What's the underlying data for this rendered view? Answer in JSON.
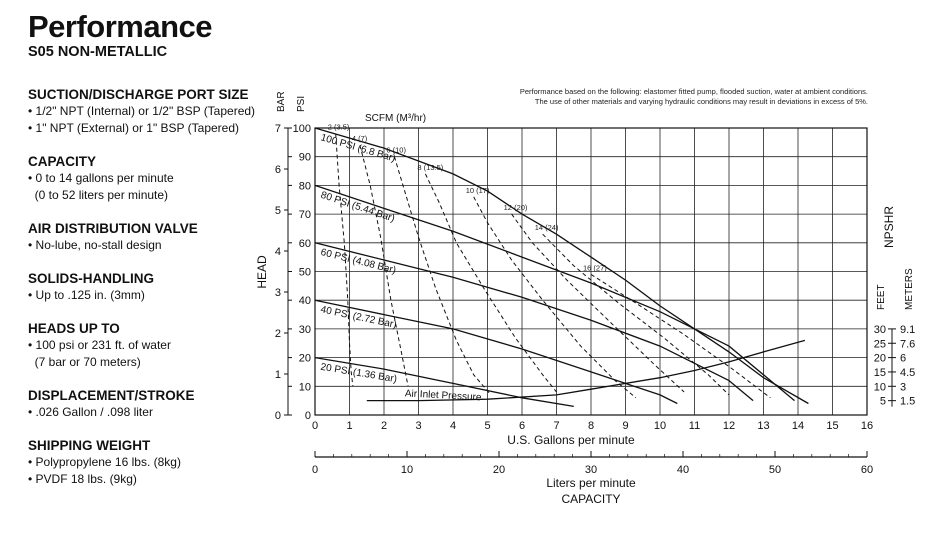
{
  "header": {
    "title": "Performance",
    "subtitle": "S05 NON-METALLIC"
  },
  "specs": [
    {
      "heading": "SUCTION/DISCHARGE PORT SIZE",
      "lines": [
        "• 1/2\" NPT (Internal) or 1/2\" BSP (Tapered)",
        "• 1\" NPT (External) or 1\" BSP (Tapered)"
      ]
    },
    {
      "heading": "CAPACITY",
      "lines": [
        "• 0 to 14 gallons per minute",
        "  (0 to 52 liters per minute)"
      ]
    },
    {
      "heading": "AIR DISTRIBUTION VALVE",
      "lines": [
        "• No-lube, no-stall design"
      ]
    },
    {
      "heading": "SOLIDS-HANDLING",
      "lines": [
        "• Up to .125 in. (3mm)"
      ]
    },
    {
      "heading": "HEADS UP TO",
      "lines": [
        "• 100 psi or 231 ft. of water",
        "  (7 bar or 70 meters)"
      ]
    },
    {
      "heading": "DISPLACEMENT/STROKE",
      "lines": [
        "• .026 Gallon / .098 liter"
      ]
    },
    {
      "heading": "SHIPPING WEIGHT",
      "lines": [
        "• Polypropylene 16 lbs. (8kg)",
        "• PVDF 18 lbs. (9kg)"
      ]
    }
  ],
  "chart_data": {
    "type": "line",
    "note_lines": [
      "Performance based on the following: elastomer fitted pump, flooded suction, water at ambient conditions.",
      "The use of other materials and varying hydraulic conditions may result in deviations in excess of 5%."
    ],
    "xlabel": "U.S. Gallons per minute",
    "ylabel": "HEAD",
    "xlim": [
      0,
      16
    ],
    "ylim": [
      0,
      100
    ],
    "x_ticks": [
      "0",
      "1",
      "2",
      "3",
      "4",
      "5",
      "6",
      "7",
      "8",
      "9",
      "10",
      "11",
      "12",
      "13",
      "14",
      "15",
      "16"
    ],
    "psi_ticks": [
      "0",
      "10",
      "20",
      "30",
      "40",
      "50",
      "60",
      "70",
      "80",
      "90",
      "100"
    ],
    "bar_ticks": [
      "0",
      "1",
      "2",
      "3",
      "4",
      "5",
      "6",
      "7"
    ],
    "psi_label": "PSI",
    "bar_label": "BAR",
    "scfm_label": "SCFM (M³/hr)",
    "secondary_x": {
      "label": "Liters per minute",
      "sublabel": "CAPACITY",
      "lim": [
        0,
        60
      ],
      "ticks": [
        "0",
        "10",
        "20",
        "30",
        "40",
        "50",
        "60"
      ]
    },
    "npshr": {
      "label": "NPSHR",
      "feet_label": "FEET",
      "meters_label": "METERS",
      "feet_ticks": [
        "5",
        "10",
        "15",
        "20",
        "25",
        "30"
      ],
      "meters_ticks": [
        "1.5",
        "3",
        "4.5",
        "6",
        "7.6",
        "9.1"
      ]
    },
    "series": [
      {
        "name": "100 PSI (6.8 Bar)",
        "x": [
          0,
          2,
          4,
          5,
          6,
          7,
          8,
          9,
          10,
          11,
          12,
          13,
          14.3
        ],
        "y": [
          100,
          93,
          84,
          78,
          70,
          63,
          55,
          47,
          38,
          30,
          22,
          13,
          4
        ]
      },
      {
        "name": "80 PSI (5.44 Bar)",
        "x": [
          0,
          2,
          4,
          6,
          8,
          10,
          12,
          13,
          13.9
        ],
        "y": [
          80,
          72,
          64,
          55,
          46,
          36,
          24,
          14,
          5
        ]
      },
      {
        "name": "60 PSI (4.08 Bar)",
        "x": [
          0,
          2,
          4,
          6,
          8,
          10,
          12,
          12.7
        ],
        "y": [
          60,
          54,
          48,
          41,
          33,
          24,
          12,
          5
        ]
      },
      {
        "name": "40 PSI (2.72 Bar)",
        "x": [
          0,
          2,
          4,
          6,
          8,
          10,
          10.5
        ],
        "y": [
          40,
          35,
          30,
          23,
          15,
          7,
          4
        ]
      },
      {
        "name": "20 PSI (1.36 Bar)",
        "x": [
          0,
          2,
          4,
          6,
          7.5
        ],
        "y": [
          20,
          16,
          11,
          6,
          3
        ]
      }
    ],
    "air_inlet_curve": {
      "name": "Air Inlet Pressure",
      "x": [
        1.5,
        3,
        5,
        7,
        8,
        9,
        10,
        11,
        12,
        13,
        14.2
      ],
      "y": [
        5,
        5,
        5.5,
        7,
        9,
        11,
        13,
        15.5,
        18.5,
        22,
        26
      ]
    },
    "scfm_curves": [
      {
        "label": "2 (3.5)",
        "x": [
          0.6,
          0.7,
          0.85,
          0.95,
          1.0,
          1.05,
          1.1
        ],
        "y": [
          98,
          80,
          60,
          40,
          25,
          15,
          10
        ]
      },
      {
        "label": "4 (7)",
        "x": [
          1.3,
          1.6,
          1.9,
          2.2,
          2.5,
          2.7
        ],
        "y": [
          94,
          80,
          62,
          40,
          22,
          10
        ]
      },
      {
        "label": "6 (10)",
        "x": [
          2.3,
          2.6,
          3.0,
          3.5,
          4.1,
          4.6,
          5.1
        ],
        "y": [
          90,
          78,
          62,
          44,
          26,
          14,
          7
        ]
      },
      {
        "label": "8 (13.5)",
        "x": [
          3.2,
          3.6,
          4.1,
          4.9,
          5.8,
          6.6,
          7.0
        ],
        "y": [
          84,
          74,
          60,
          44,
          27,
          14,
          8
        ]
      },
      {
        "label": "10 (17)",
        "x": [
          4.6,
          5.0,
          5.7,
          6.6,
          7.7,
          8.7,
          9.3
        ],
        "y": [
          76,
          67,
          54,
          40,
          24,
          12,
          6
        ]
      },
      {
        "label": "12 (20)",
        "x": [
          5.7,
          6.3,
          7.3,
          8.5,
          9.8,
          10.7
        ],
        "y": [
          70,
          60,
          47,
          33,
          18,
          8
        ]
      },
      {
        "label": "14 (24)",
        "x": [
          6.6,
          7.5,
          8.8,
          10.1,
          11.4,
          12.0
        ],
        "y": [
          63,
          52,
          39,
          27,
          14,
          7
        ]
      },
      {
        "label": "16 (27)",
        "x": [
          8.0,
          9.3,
          10.7,
          12.1,
          13.2
        ],
        "y": [
          49,
          39,
          28,
          16,
          6
        ]
      }
    ]
  }
}
